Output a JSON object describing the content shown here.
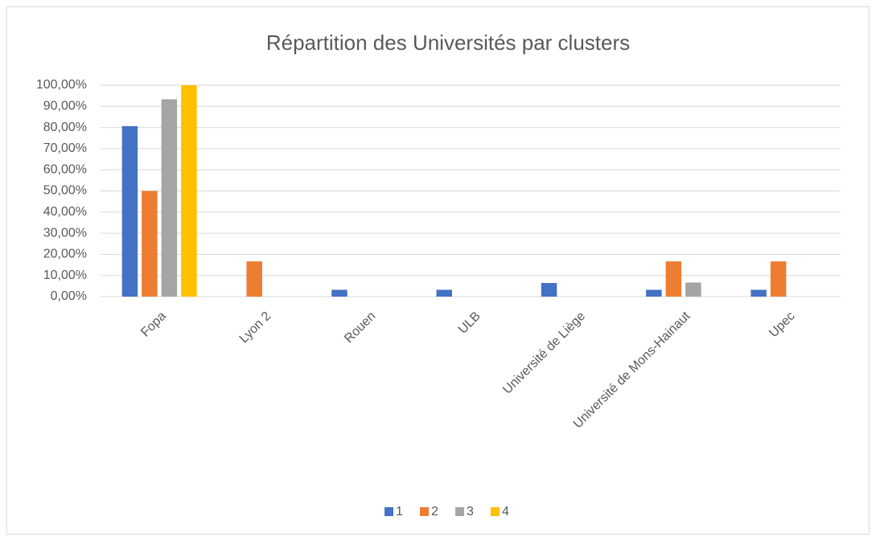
{
  "chart_data": {
    "type": "bar",
    "title": "Répartition des Universités par clusters",
    "categories": [
      "Fopa",
      "Lyon 2",
      "Rouen",
      "ULB",
      "Université de Liège",
      "Université de Mons-Hainaut",
      "Upec"
    ],
    "series": [
      {
        "name": "1",
        "color": "#4472c4",
        "values": [
          80.65,
          0,
          3.23,
          3.23,
          6.45,
          3.23,
          3.23
        ]
      },
      {
        "name": "2",
        "color": "#ed7d31",
        "values": [
          50,
          16.67,
          0,
          0,
          0,
          16.67,
          16.67
        ]
      },
      {
        "name": "3",
        "color": "#a5a5a5",
        "values": [
          93.33,
          0,
          0,
          0,
          0,
          6.67,
          0
        ]
      },
      {
        "name": "4",
        "color": "#ffc000",
        "values": [
          100,
          0,
          0,
          0,
          0,
          0,
          0
        ]
      }
    ],
    "ylim": [
      0,
      100
    ],
    "yticks": [
      {
        "value": 0,
        "label": "0,00%"
      },
      {
        "value": 10,
        "label": "10,00%"
      },
      {
        "value": 20,
        "label": "20,00%"
      },
      {
        "value": 30,
        "label": "30,00%"
      },
      {
        "value": 40,
        "label": "40,00%"
      },
      {
        "value": 50,
        "label": "50,00%"
      },
      {
        "value": 60,
        "label": "60,00%"
      },
      {
        "value": 70,
        "label": "70,00%"
      },
      {
        "value": 80,
        "label": "80,00%"
      },
      {
        "value": 90,
        "label": "90,00%"
      },
      {
        "value": 100,
        "label": "100,00%"
      }
    ],
    "grid": true,
    "legend": "bottom"
  }
}
